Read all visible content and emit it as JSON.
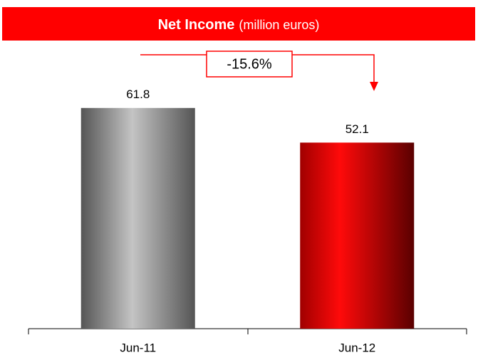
{
  "chart_data": {
    "type": "bar",
    "title": "Net Income",
    "subtitle": "(million euros)",
    "annotation": "-15.6%",
    "categories": [
      "Jun-11",
      "Jun-12"
    ],
    "values": [
      61.8,
      52.1
    ],
    "colors": [
      "#c4c4c4",
      "#ff0a0a"
    ],
    "ylim": [
      0,
      70
    ]
  }
}
